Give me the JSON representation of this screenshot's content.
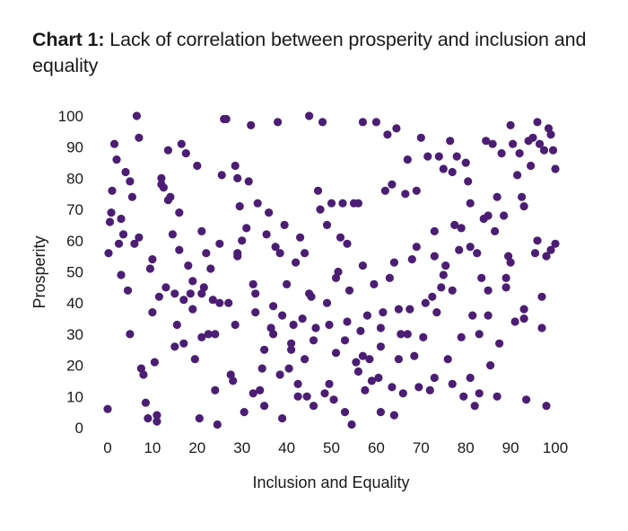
{
  "title": {
    "prefix": "Chart 1:",
    "text": " Lack of correlation between prosperity and inclusion and equality"
  },
  "chart_data": {
    "type": "scatter",
    "title": "Chart 1: Lack of correlation between prosperity and inclusion and equality",
    "xlabel": "Inclusion and Equality",
    "ylabel": "Prosperity",
    "xlim": [
      0,
      100
    ],
    "ylim": [
      0,
      100
    ],
    "xticks": [
      0,
      10,
      20,
      30,
      40,
      50,
      60,
      70,
      80,
      90,
      100
    ],
    "yticks": [
      0,
      10,
      20,
      30,
      40,
      50,
      60,
      70,
      80,
      90,
      100
    ],
    "grid": false,
    "legend": "none",
    "color": "#4B1E73",
    "points": [
      [
        0,
        6
      ],
      [
        0.2,
        56
      ],
      [
        0.5,
        66
      ],
      [
        0.8,
        69
      ],
      [
        1,
        76
      ],
      [
        1.5,
        91
      ],
      [
        2,
        86
      ],
      [
        2.5,
        59
      ],
      [
        3,
        49
      ],
      [
        3.5,
        62
      ],
      [
        4,
        82
      ],
      [
        4.5,
        44
      ],
      [
        5,
        79
      ],
      [
        5,
        30
      ],
      [
        5.5,
        74
      ],
      [
        6,
        59
      ],
      [
        6.5,
        100
      ],
      [
        7,
        93
      ],
      [
        7.5,
        19
      ],
      [
        8,
        17
      ],
      [
        8.5,
        8
      ],
      [
        9,
        3
      ],
      [
        9.5,
        51
      ],
      [
        10,
        54
      ],
      [
        10,
        37
      ],
      [
        10.5,
        21
      ],
      [
        11,
        4
      ],
      [
        11,
        2
      ],
      [
        11.5,
        42
      ],
      [
        12,
        80
      ],
      [
        12.5,
        77
      ],
      [
        13,
        45
      ],
      [
        13.5,
        89
      ],
      [
        13.5,
        73
      ],
      [
        14,
        74
      ],
      [
        14.5,
        62
      ],
      [
        15,
        26
      ],
      [
        15,
        43
      ],
      [
        15.5,
        33
      ],
      [
        16,
        69
      ],
      [
        16.5,
        91
      ],
      [
        17,
        41
      ],
      [
        17,
        27
      ],
      [
        17.5,
        88
      ],
      [
        18,
        52
      ],
      [
        18.5,
        43
      ],
      [
        19,
        38
      ],
      [
        19,
        47
      ],
      [
        19.5,
        22
      ],
      [
        20,
        84
      ],
      [
        20.5,
        3
      ],
      [
        21,
        29
      ],
      [
        21,
        43
      ],
      [
        21.5,
        45
      ],
      [
        22,
        56
      ],
      [
        22.5,
        30
      ],
      [
        23,
        51
      ],
      [
        23.5,
        41
      ],
      [
        24,
        12
      ],
      [
        24,
        30
      ],
      [
        24.5,
        1
      ],
      [
        25,
        40
      ],
      [
        25.5,
        81
      ],
      [
        26,
        99
      ],
      [
        26.5,
        99
      ],
      [
        27,
        40
      ],
      [
        27.5,
        17
      ],
      [
        28,
        15
      ],
      [
        28.5,
        84
      ],
      [
        28.5,
        33
      ],
      [
        29,
        80
      ],
      [
        29,
        56
      ],
      [
        29.5,
        71
      ],
      [
        30,
        60
      ],
      [
        30.5,
        5
      ],
      [
        31,
        64
      ],
      [
        31.5,
        79
      ],
      [
        32,
        97
      ],
      [
        32.5,
        46
      ],
      [
        32.5,
        11
      ],
      [
        33,
        43
      ],
      [
        33.5,
        72
      ],
      [
        34,
        12
      ],
      [
        34.5,
        19
      ],
      [
        35,
        7
      ],
      [
        35,
        25
      ],
      [
        35.5,
        62
      ],
      [
        36,
        69
      ],
      [
        36.5,
        32
      ],
      [
        37,
        39
      ],
      [
        37.5,
        58
      ],
      [
        38,
        98
      ],
      [
        38.5,
        56
      ],
      [
        38.5,
        17
      ],
      [
        39,
        36
      ],
      [
        39,
        3
      ],
      [
        39.5,
        65
      ],
      [
        40,
        46
      ],
      [
        40.5,
        19
      ],
      [
        41,
        25
      ],
      [
        41.5,
        33
      ],
      [
        42,
        53
      ],
      [
        42.5,
        14
      ],
      [
        42.5,
        10
      ],
      [
        43,
        61
      ],
      [
        43.5,
        35
      ],
      [
        44,
        22
      ],
      [
        44,
        56
      ],
      [
        44.5,
        10
      ],
      [
        45,
        100
      ],
      [
        45.5,
        42
      ],
      [
        46,
        28
      ],
      [
        46,
        7
      ],
      [
        46.5,
        32
      ],
      [
        47,
        76
      ],
      [
        47.5,
        70
      ],
      [
        48,
        98
      ],
      [
        48.5,
        11
      ],
      [
        49,
        65
      ],
      [
        49.5,
        14
      ],
      [
        49.5,
        33
      ],
      [
        50,
        72
      ],
      [
        50.5,
        9
      ],
      [
        51,
        48
      ],
      [
        51,
        24
      ],
      [
        51.5,
        50
      ],
      [
        52,
        61
      ],
      [
        52.5,
        72
      ],
      [
        53,
        5
      ],
      [
        53.5,
        59
      ],
      [
        53.5,
        34
      ],
      [
        54,
        44
      ],
      [
        54.5,
        1
      ],
      [
        55,
        72
      ],
      [
        55.5,
        21
      ],
      [
        56,
        72
      ],
      [
        56,
        18
      ],
      [
        56.5,
        31
      ],
      [
        57,
        98
      ],
      [
        57,
        52
      ],
      [
        57.5,
        12
      ],
      [
        58,
        36
      ],
      [
        58.5,
        22
      ],
      [
        59,
        15
      ],
      [
        59.5,
        46
      ],
      [
        60,
        98
      ],
      [
        60.5,
        16
      ],
      [
        61,
        32
      ],
      [
        61,
        5
      ],
      [
        61.5,
        37
      ],
      [
        62,
        76
      ],
      [
        62.5,
        94
      ],
      [
        63,
        48
      ],
      [
        63.5,
        13
      ],
      [
        63.5,
        78
      ],
      [
        64,
        53
      ],
      [
        64,
        4
      ],
      [
        64.5,
        96
      ],
      [
        65,
        22
      ],
      [
        65.5,
        30
      ],
      [
        66,
        11
      ],
      [
        66.5,
        75
      ],
      [
        67,
        86
      ],
      [
        67,
        30
      ],
      [
        67.5,
        38
      ],
      [
        68,
        54
      ],
      [
        68.5,
        23
      ],
      [
        69,
        76
      ],
      [
        69.5,
        13
      ],
      [
        70,
        93
      ],
      [
        70.5,
        29
      ],
      [
        71,
        40
      ],
      [
        71.5,
        87
      ],
      [
        72,
        12
      ],
      [
        72.5,
        42
      ],
      [
        73,
        63
      ],
      [
        73,
        16
      ],
      [
        73.5,
        37
      ],
      [
        74,
        87
      ],
      [
        74.5,
        45
      ],
      [
        75,
        83
      ],
      [
        75,
        49
      ],
      [
        75.5,
        52
      ],
      [
        76,
        22
      ],
      [
        76.5,
        92
      ],
      [
        77,
        82
      ],
      [
        77,
        14
      ],
      [
        77.5,
        65
      ],
      [
        78,
        87
      ],
      [
        78.5,
        57
      ],
      [
        79,
        64
      ],
      [
        79,
        29
      ],
      [
        79.5,
        10
      ],
      [
        80,
        85
      ],
      [
        80.5,
        79
      ],
      [
        81,
        72
      ],
      [
        81,
        58
      ],
      [
        81.5,
        36
      ],
      [
        82,
        7
      ],
      [
        82.5,
        56
      ],
      [
        83,
        30
      ],
      [
        83,
        11
      ],
      [
        83.5,
        48
      ],
      [
        84,
        67
      ],
      [
        84.5,
        92
      ],
      [
        85,
        44
      ],
      [
        85,
        68
      ],
      [
        85.5,
        20
      ],
      [
        86,
        91
      ],
      [
        86.5,
        63
      ],
      [
        87,
        10
      ],
      [
        87,
        74
      ],
      [
        87.5,
        27
      ],
      [
        88,
        88
      ],
      [
        88.5,
        68
      ],
      [
        89,
        48
      ],
      [
        89.5,
        55
      ],
      [
        90,
        97
      ],
      [
        90,
        53
      ],
      [
        90.5,
        91
      ],
      [
        91,
        34
      ],
      [
        91.5,
        81
      ],
      [
        92,
        88
      ],
      [
        92.5,
        74
      ],
      [
        93,
        71
      ],
      [
        93,
        35
      ],
      [
        93.5,
        9
      ],
      [
        94,
        92
      ],
      [
        94.5,
        84
      ],
      [
        95,
        93
      ],
      [
        95.5,
        56
      ],
      [
        96,
        60
      ],
      [
        96,
        98
      ],
      [
        96.5,
        91
      ],
      [
        97,
        42
      ],
      [
        97.5,
        89
      ],
      [
        98,
        7
      ],
      [
        98,
        55
      ],
      [
        98.5,
        96
      ],
      [
        99,
        94
      ],
      [
        99,
        57
      ],
      [
        99.5,
        89
      ],
      [
        100,
        59
      ],
      [
        100,
        83
      ],
      [
        3,
        67
      ],
      [
        7,
        61
      ],
      [
        12,
        78
      ],
      [
        16,
        57
      ],
      [
        21,
        63
      ],
      [
        25,
        59
      ],
      [
        29,
        55
      ],
      [
        33,
        37
      ],
      [
        37,
        30
      ],
      [
        41,
        27
      ],
      [
        45,
        43
      ],
      [
        49,
        40
      ],
      [
        53,
        28
      ],
      [
        57,
        23
      ],
      [
        61,
        26
      ],
      [
        65,
        38
      ],
      [
        69,
        58
      ],
      [
        73,
        55
      ],
      [
        77,
        44
      ],
      [
        81,
        16
      ],
      [
        85,
        36
      ],
      [
        89,
        45
      ],
      [
        93,
        38
      ],
      [
        97,
        32
      ]
    ]
  }
}
